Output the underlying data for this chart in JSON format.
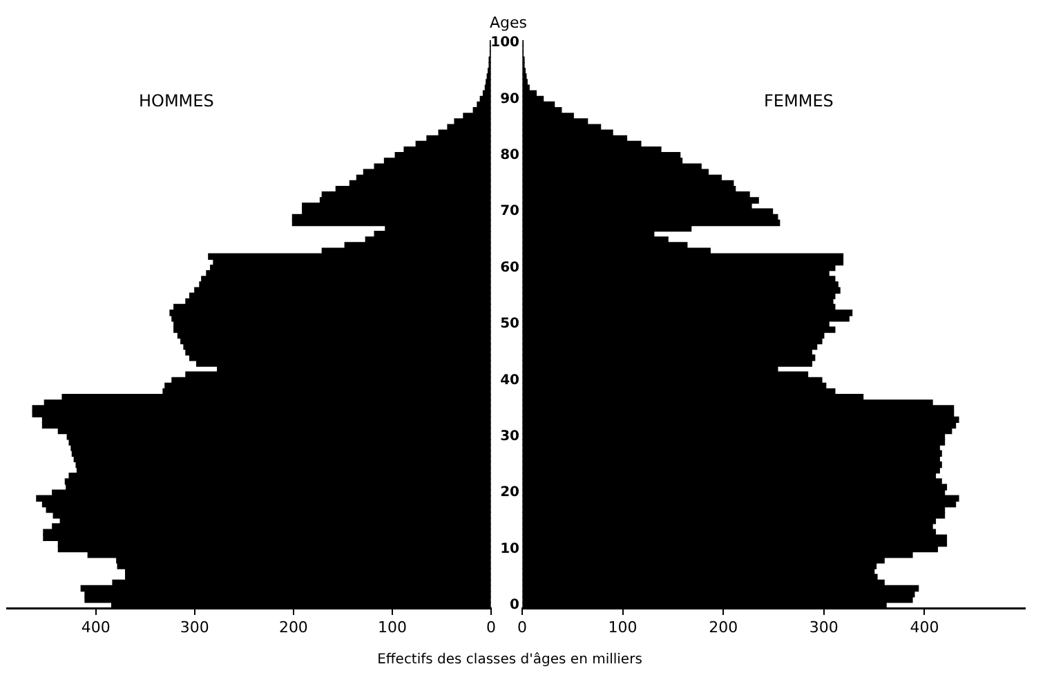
{
  "chart_data": [
    {
      "type": "bar",
      "orientation": "horizontal",
      "title": "HOMMES",
      "xlabel": "Effectifs des classes d'âges en milliers",
      "tick_labels": "x",
      "grid": false,
      "categories": [
        "100",
        null,
        null,
        null,
        null,
        null,
        null,
        null,
        null,
        null,
        "90",
        null,
        null,
        null,
        null,
        null,
        null,
        null,
        null,
        null,
        "80",
        null,
        null,
        null,
        null,
        null,
        null,
        null,
        null,
        null,
        "70",
        null,
        null,
        null,
        null,
        null,
        null,
        null,
        null,
        null,
        "60",
        null,
        null,
        null,
        null,
        null,
        null,
        null,
        null,
        null,
        "50",
        null,
        null,
        null,
        null,
        null,
        null,
        null,
        null,
        null,
        "40",
        null,
        null,
        null,
        null,
        null,
        null,
        null,
        null,
        null,
        "30",
        null,
        null,
        null,
        null,
        null,
        null,
        null,
        null,
        null,
        "20",
        null,
        null,
        null,
        null,
        null,
        null,
        null,
        null,
        null,
        "10",
        null,
        null,
        null,
        null,
        null,
        null,
        null,
        null,
        null,
        "0"
      ],
      "series": [
        {
          "color": "#000000",
          "values": [
            1,
            1,
            1,
            2,
            2,
            3,
            4,
            5,
            6,
            8,
            11,
            14,
            18,
            28,
            37,
            44,
            53,
            65,
            76,
            88,
            97,
            108,
            118,
            129,
            136,
            143,
            157,
            171,
            173,
            191,
            191,
            201,
            201,
            107,
            118,
            127,
            148,
            171,
            286,
            281,
            284,
            288,
            293,
            295,
            300,
            305,
            309,
            321,
            325,
            323,
            321,
            321,
            317,
            314,
            311,
            309,
            305,
            298,
            277,
            309,
            323,
            330,
            332,
            434,
            452,
            464,
            464,
            454,
            454,
            438,
            429,
            427,
            425,
            424,
            422,
            420,
            419,
            427,
            431,
            430,
            444,
            460,
            454,
            450,
            443,
            436,
            444,
            453,
            453,
            438,
            438,
            408,
            379,
            378,
            370,
            370,
            383,
            415,
            411,
            411,
            384
          ]
        }
      ],
      "xlim": [
        490,
        0
      ],
      "xticks": [
        400,
        300,
        200,
        100,
        0
      ]
    },
    {
      "type": "bar",
      "orientation": "horizontal",
      "title": "FEMMES",
      "ylabel": "Ages",
      "grid": false,
      "categories": [
        "100",
        null,
        null,
        null,
        null,
        null,
        null,
        null,
        null,
        null,
        "90",
        null,
        null,
        null,
        null,
        null,
        null,
        null,
        null,
        null,
        "80",
        null,
        null,
        null,
        null,
        null,
        null,
        null,
        null,
        null,
        "70",
        null,
        null,
        null,
        null,
        null,
        null,
        null,
        null,
        null,
        "60",
        null,
        null,
        null,
        null,
        null,
        null,
        null,
        null,
        null,
        "50",
        null,
        null,
        null,
        null,
        null,
        null,
        null,
        null,
        null,
        "40",
        null,
        null,
        null,
        null,
        null,
        null,
        null,
        null,
        null,
        "30",
        null,
        null,
        null,
        null,
        null,
        null,
        null,
        null,
        null,
        "20",
        null,
        null,
        null,
        null,
        null,
        null,
        null,
        null,
        null,
        "10",
        null,
        null,
        null,
        null,
        null,
        null,
        null,
        null,
        null,
        "0"
      ],
      "series": [
        {
          "color": "#000000",
          "values": [
            1,
            1,
            1,
            2,
            2,
            3,
            4,
            5,
            7,
            14,
            21,
            32,
            39,
            51,
            65,
            78,
            90,
            104,
            118,
            138,
            157,
            159,
            178,
            185,
            198,
            210,
            212,
            226,
            235,
            228,
            249,
            254,
            256,
            168,
            131,
            145,
            164,
            187,
            319,
            319,
            311,
            305,
            311,
            314,
            316,
            311,
            309,
            311,
            328,
            325,
            305,
            311,
            300,
            298,
            293,
            288,
            291,
            288,
            254,
            284,
            298,
            302,
            311,
            339,
            408,
            429,
            429,
            434,
            431,
            427,
            420,
            420,
            415,
            417,
            415,
            417,
            415,
            411,
            417,
            422,
            420,
            434,
            431,
            420,
            420,
            411,
            408,
            411,
            422,
            422,
            413,
            388,
            360,
            352,
            350,
            353,
            360,
            394,
            390,
            388,
            362
          ]
        }
      ],
      "xlim": [
        0,
        500
      ],
      "xticks": [
        0,
        100,
        200,
        300,
        400
      ]
    }
  ]
}
